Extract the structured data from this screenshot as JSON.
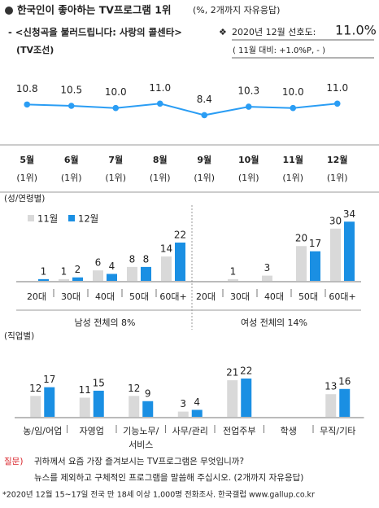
{
  "header": {
    "title": "한국인이 좋아하는 TV프로그램 1위",
    "title_note": "(%, 2개까지 자유응답)",
    "program": "- <신청곡을 불러드립니다: 사랑의 콜센타>",
    "mark": "❖",
    "rating_label": "2020년 12월 선호도:",
    "rating": "11.0%",
    "channel": "(TV조선)",
    "change": "( 11월 대비: +1.0%P,  -  )"
  },
  "chart_data": [
    {
      "type": "line",
      "categories": [
        "5월",
        "6월",
        "7월",
        "8월",
        "9월",
        "10월",
        "11월",
        "12월"
      ],
      "ranks": [
        "(1위)",
        "(1위)",
        "(1위)",
        "(1위)",
        "(1위)",
        "(1위)",
        "(1위)",
        "(1위)"
      ],
      "values": [
        10.8,
        10.5,
        10.0,
        11.0,
        8.4,
        10.3,
        10.0,
        11.0
      ],
      "value_labels": [
        "10.8",
        "10.5",
        "10.0",
        "11.0",
        "8.4",
        "10.3",
        "10.0",
        "11.0"
      ],
      "color": "#2a9df4",
      "ylim": [
        5,
        16
      ]
    },
    {
      "type": "bar",
      "series": [
        {
          "name": "11월",
          "color": "#d9d9d9"
        },
        {
          "name": "12월",
          "color": "#1a8fe3"
        }
      ],
      "ylim": [
        0,
        36
      ],
      "panels": [
        {
          "title": "(성/연령별)",
          "groups": [
            {
              "label": "남성 전체의 8%",
              "categories": [
                "20대",
                "30대",
                "40대",
                "50대",
                "60대+"
              ],
              "values": [
                [
                  null,
                  1,
                  6,
                  8,
                  14
                ],
                [
                  1,
                  2,
                  4,
                  8,
                  22
                ]
              ]
            },
            {
              "label": "여성 전체의 14%",
              "categories": [
                "20대",
                "30대",
                "40대",
                "50대",
                "60대+"
              ],
              "values": [
                [
                  null,
                  1,
                  3,
                  20,
                  30
                ],
                [
                  null,
                  null,
                  null,
                  17,
                  34
                ]
              ]
            }
          ]
        },
        {
          "title": "(직업별)",
          "groups": [
            {
              "categories": [
                "농/임/어업",
                "자영업",
                "기능노무/\n서비스",
                "사무/관리",
                "전업주부",
                "학생",
                "무직/기타"
              ],
              "values": [
                [
                  12,
                  11,
                  12,
                  3,
                  21,
                  null,
                  13
                ],
                [
                  17,
                  15,
                  9,
                  4,
                  22,
                  null,
                  16
                ]
              ]
            }
          ]
        }
      ]
    }
  ],
  "footer": {
    "question_label": "질문)",
    "question_1": "귀하께서 요즘 가장 즐겨보시는 TV프로그램은 무엇입니까?",
    "question_2": "뉴스를 제외하고 구체적인 프로그램을 말씀해 주십시오. (2개까지 자유응답)",
    "note": "*2020년 12월 15~17일 전국 만 18세 이상 1,000명 전화조사. 한국갤럽 www.gallup.co.kr"
  }
}
